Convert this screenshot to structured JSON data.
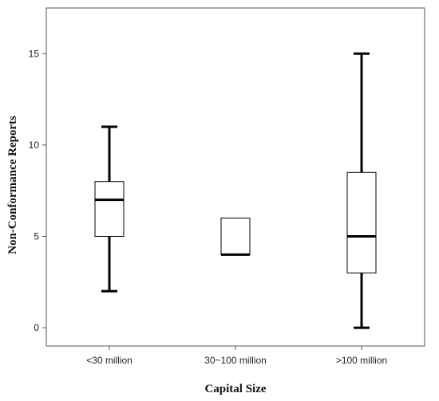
{
  "chart_data": {
    "type": "boxplot",
    "title": "",
    "xlabel": "Capital Size",
    "ylabel": "Non-Conformance Reports",
    "categories": [
      "<30 million",
      "30~100 million",
      ">100 million"
    ],
    "boxes": [
      {
        "category": "<30 million",
        "whisker_low": 2,
        "q1": 5,
        "median": 7,
        "q3": 8,
        "whisker_high": 11
      },
      {
        "category": "30~100 million",
        "whisker_low": 4,
        "q1": 4,
        "median": 4,
        "q3": 6,
        "whisker_high": 6
      },
      {
        "category": ">100 million",
        "whisker_low": 0,
        "q1": 3,
        "median": 5,
        "q3": 8.5,
        "whisker_high": 15
      }
    ],
    "ylim": [
      -1,
      17.5
    ],
    "yticks": [
      0,
      5,
      10,
      15
    ],
    "ytick_labels": [
      "0",
      "5",
      "10",
      "15"
    ],
    "grid": false,
    "legend": "none",
    "colors": {
      "box_fill": "#ffffff",
      "stroke": "#000000",
      "frame": "#555555"
    }
  }
}
